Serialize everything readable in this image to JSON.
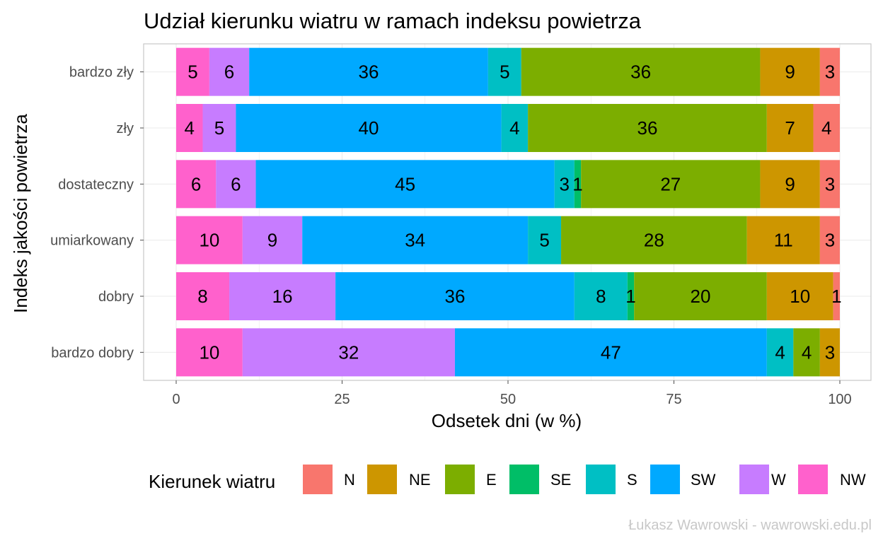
{
  "chart_data": {
    "type": "bar",
    "orientation": "horizontal",
    "stacked": true,
    "title": "Udział kierunku wiatru w ramach indeksu powietrza",
    "xlabel": "Odsetek dni (w %)",
    "ylabel": "Indeks jakości powietrza",
    "xlim": [
      0,
      100
    ],
    "xticks": [
      "0",
      "25",
      "50",
      "75",
      "100"
    ],
    "grid": true,
    "legend_position": "bottom",
    "legend_title": "Kierunek wiatru",
    "caption": "Łukasz Wawrowski - wawrowski.edu.pl",
    "categories": [
      "bardzo zły",
      "zły",
      "dostateczny",
      "umiarkowany",
      "dobry",
      "bardzo dobry"
    ],
    "series": [
      {
        "name": "N",
        "color": "#F8766D",
        "values": [
          3,
          4,
          3,
          3,
          1,
          0
        ]
      },
      {
        "name": "NE",
        "color": "#CD9600",
        "values": [
          9,
          7,
          9,
          11,
          10,
          3
        ]
      },
      {
        "name": "E",
        "color": "#7CAE00",
        "values": [
          36,
          36,
          27,
          28,
          20,
          4
        ]
      },
      {
        "name": "SE",
        "color": "#00BE67",
        "values": [
          0,
          0,
          1,
          0,
          1,
          0
        ]
      },
      {
        "name": "S",
        "color": "#00BFC4",
        "values": [
          5,
          4,
          3,
          5,
          8,
          4
        ]
      },
      {
        "name": "SW",
        "color": "#00A9FF",
        "values": [
          36,
          40,
          45,
          34,
          36,
          47
        ]
      },
      {
        "name": "W",
        "color": "#C77CFF",
        "values": [
          6,
          5,
          6,
          9,
          16,
          32
        ]
      },
      {
        "name": "NW",
        "color": "#FF61CC",
        "values": [
          5,
          4,
          6,
          10,
          8,
          10
        ]
      }
    ],
    "stack_order_left_to_right": [
      "NW",
      "W",
      "SW",
      "S",
      "SE",
      "E",
      "NE",
      "N"
    ]
  }
}
